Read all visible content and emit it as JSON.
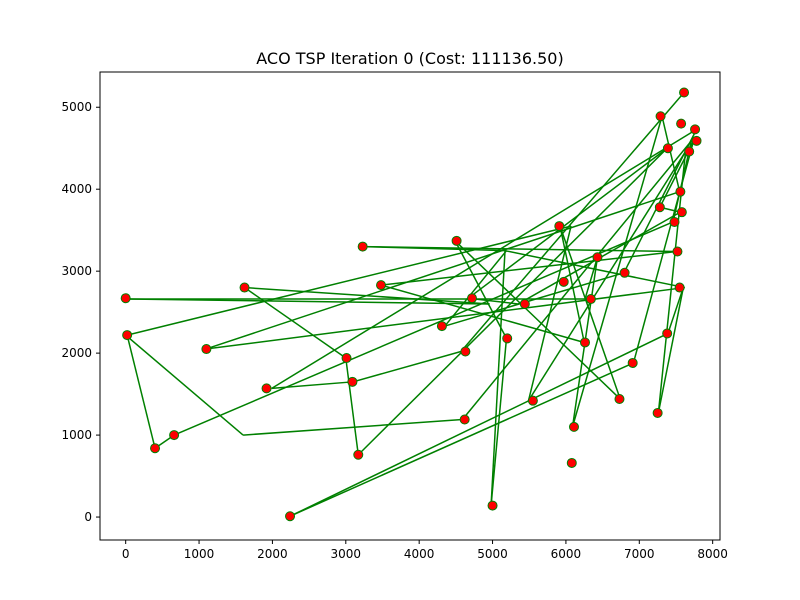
{
  "chart_data": {
    "type": "scatter",
    "title": "ACO TSP Iteration 0 (Cost: 111136.50)",
    "xlabel": "",
    "ylabel": "",
    "xlim": [
      -350,
      8100
    ],
    "ylim": [
      -280,
      5430
    ],
    "xticks": [
      0,
      1000,
      2000,
      3000,
      4000,
      5000,
      6000,
      7000,
      8000
    ],
    "yticks": [
      0,
      1000,
      2000,
      3000,
      4000,
      5000
    ],
    "xtick_labels": [
      "0",
      "1000",
      "2000",
      "3000",
      "4000",
      "5000",
      "6000",
      "7000",
      "8000"
    ],
    "ytick_labels": [
      "0",
      "1000",
      "2000",
      "3000",
      "4000",
      "5000"
    ],
    "grid": false,
    "colors": {
      "point": "#ff0000",
      "route": "#008000",
      "point_edge": "#008000"
    },
    "series": [
      {
        "type": "line",
        "x": [
          7610,
          4570,
          3100,
          1990,
          7780,
          6790,
          4350,
          5190,
          3230,
          7510,
          3480,
          6250,
          5920,
          6740,
          4490,
          5190,
          4980,
          5170,
          7620,
          1090,
          7550,
          7310,
          6090,
          6430,
          6260,
          0,
          4960,
          1620,
          3000,
          3170,
          7380,
          4670,
          5350,
          7560,
          7280,
          7740,
          6920,
          2240,
          7390,
          7600,
          7260,
          7630,
          5490,
          6070,
          20,
          400,
          660,
          7460,
          7710,
          4590,
          1600,
          0
        ],
        "y": [
          5180,
          2020,
          1650,
          1570,
          4730,
          2980,
          2330,
          3250,
          3300,
          3240,
          2830,
          2130,
          3550,
          1440,
          3370,
          2180,
          140,
          3250,
          2800,
          2050,
          3970,
          4890,
          1100,
          3170,
          2660,
          2660,
          2600,
          2800,
          1940,
          760,
          4500,
          2670,
          2600,
          3720,
          3780,
          4590,
          1880,
          10,
          2240,
          2800,
          1270,
          4460,
          1420,
          3550,
          2220,
          840,
          1000,
          3600,
          4590,
          1190,
          1000,
          2220
        ]
      },
      {
        "type": "scatter",
        "x": [
          7610,
          7290,
          7570,
          7760,
          7390,
          7680,
          7780,
          7560,
          7280,
          7480,
          7580,
          7520,
          7550,
          7380,
          6910,
          6730,
          7250,
          6800,
          6430,
          6340,
          5970,
          5910,
          6260,
          6110,
          6080,
          5550,
          5440,
          5200,
          4720,
          4630,
          4510,
          4310,
          5000,
          4620,
          3230,
          3480,
          3010,
          3090,
          3170,
          1620,
          1920,
          1100,
          660,
          400,
          20,
          0,
          2240
        ],
        "y": [
          5180,
          4890,
          4800,
          4730,
          4500,
          4460,
          4590,
          3970,
          3780,
          3600,
          3720,
          3240,
          2800,
          2240,
          1880,
          1440,
          1270,
          2980,
          3170,
          2660,
          2870,
          3550,
          2130,
          1100,
          660,
          1420,
          2600,
          2180,
          2670,
          2020,
          3370,
          2330,
          140,
          1190,
          3300,
          2830,
          1940,
          1650,
          760,
          2800,
          1570,
          2050,
          1000,
          840,
          2220,
          2670,
          10
        ]
      }
    ]
  }
}
